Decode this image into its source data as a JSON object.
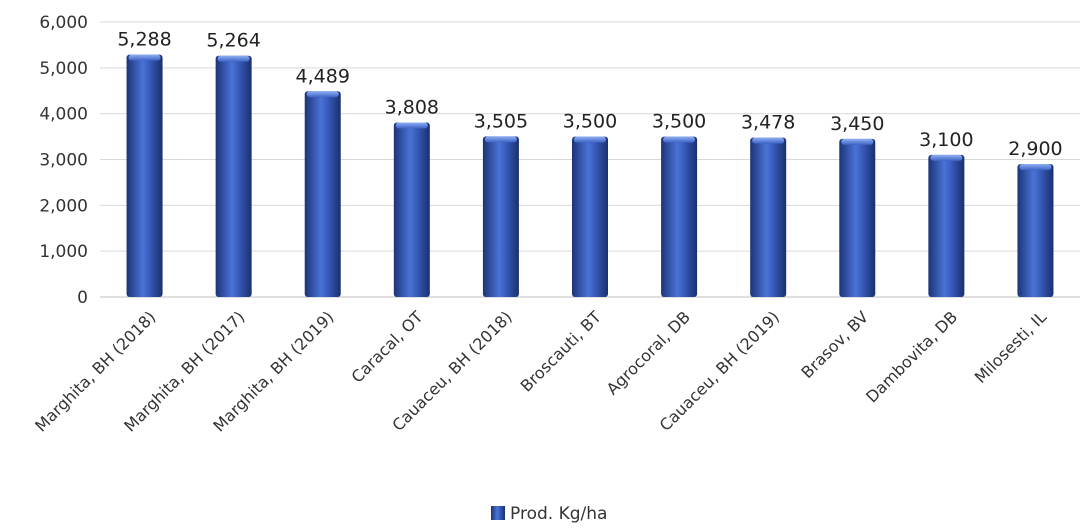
{
  "chart_data": {
    "type": "bar",
    "categories": [
      "Marghita, BH (2018)",
      "Marghita, BH (2017)",
      "Marghita, BH (2019)",
      "Caracal, OT",
      "Cauaceu, BH (2018)",
      "Broscauti, BT",
      "Agrocoral, DB",
      "Cauaceu, BH (2019)",
      "Brasov, BV",
      "Dambovita, DB",
      "Milosesti, IL"
    ],
    "series": [
      {
        "name": "Prod. Kg/ha",
        "values": [
          5288,
          5264,
          4489,
          3808,
          3505,
          3500,
          3500,
          3478,
          3450,
          3100,
          2900
        ],
        "labels": [
          "5,288",
          "5,264",
          "4,489",
          "3,808",
          "3,505",
          "3,500",
          "3,500",
          "3,478",
          "3,450",
          "3,100",
          "2,900"
        ],
        "color": "#2e4fa8"
      }
    ],
    "ylim": [
      0,
      6000
    ],
    "yticks": [
      0,
      1000,
      2000,
      3000,
      4000,
      5000,
      6000
    ],
    "ytick_labels": [
      "0",
      "1,000",
      "2,000",
      "3,000",
      "4,000",
      "5,000",
      "6,000"
    ],
    "grid": true,
    "legend_position": "bottom-center",
    "title": "",
    "xlabel": "",
    "ylabel": ""
  }
}
